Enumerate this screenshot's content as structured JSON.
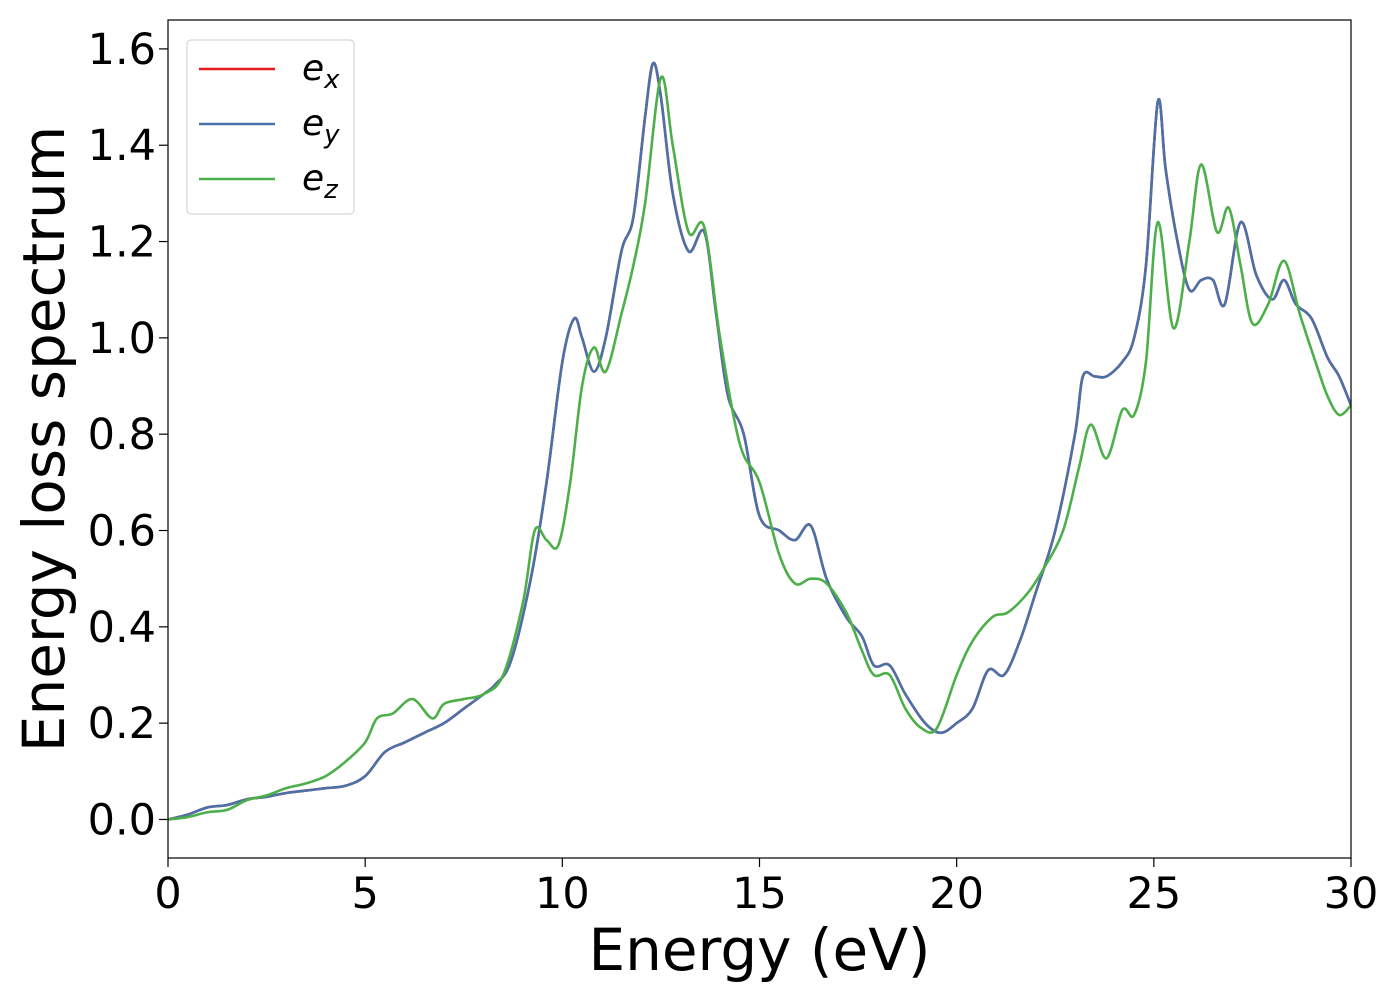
{
  "chart_data": {
    "type": "line",
    "title": "",
    "xlabel": "Energy (eV)",
    "ylabel": "Energy loss spectrum",
    "xlim": [
      0,
      30
    ],
    "ylim": [
      -0.08,
      1.66
    ],
    "xticks": [
      0,
      5,
      10,
      15,
      20,
      25,
      30
    ],
    "xtick_labels": [
      "0",
      "5",
      "10",
      "15",
      "20",
      "25",
      "30"
    ],
    "yticks": [
      0.0,
      0.2,
      0.4,
      0.6,
      0.8,
      1.0,
      1.2,
      1.4,
      1.6
    ],
    "ytick_labels": [
      "0.0",
      "0.2",
      "0.4",
      "0.6",
      "0.8",
      "1.0",
      "1.2",
      "1.4",
      "1.6"
    ],
    "grid": false,
    "legend": {
      "position": "top-left"
    },
    "series": [
      {
        "name": "e_x",
        "legend_base": "e",
        "legend_sub": "x",
        "color": "#e41a1c",
        "points": [
          [
            0,
            0
          ],
          [
            0.5,
            0.01
          ],
          [
            1,
            0.025
          ],
          [
            1.5,
            0.03
          ],
          [
            2,
            0.042
          ],
          [
            2.5,
            0.047
          ],
          [
            3,
            0.055
          ],
          [
            3.5,
            0.06
          ],
          [
            4,
            0.065
          ],
          [
            4.5,
            0.07
          ],
          [
            5,
            0.09
          ],
          [
            5.5,
            0.14
          ],
          [
            6,
            0.16
          ],
          [
            6.5,
            0.18
          ],
          [
            7,
            0.2
          ],
          [
            7.5,
            0.23
          ],
          [
            8,
            0.26
          ],
          [
            8.3,
            0.28
          ],
          [
            8.7,
            0.33
          ],
          [
            9.2,
            0.5
          ],
          [
            9.6,
            0.7
          ],
          [
            10,
            0.95
          ],
          [
            10.3,
            1.04
          ],
          [
            10.5,
            1.0
          ],
          [
            10.8,
            0.93
          ],
          [
            11.1,
            1.0
          ],
          [
            11.5,
            1.18
          ],
          [
            11.8,
            1.25
          ],
          [
            12.1,
            1.46
          ],
          [
            12.3,
            1.57
          ],
          [
            12.5,
            1.5
          ],
          [
            12.8,
            1.3
          ],
          [
            13.2,
            1.18
          ],
          [
            13.6,
            1.22
          ],
          [
            13.9,
            1.05
          ],
          [
            14.2,
            0.88
          ],
          [
            14.6,
            0.8
          ],
          [
            15,
            0.63
          ],
          [
            15.5,
            0.6
          ],
          [
            15.9,
            0.58
          ],
          [
            16.3,
            0.61
          ],
          [
            16.7,
            0.5
          ],
          [
            17.2,
            0.42
          ],
          [
            17.6,
            0.38
          ],
          [
            17.9,
            0.32
          ],
          [
            18.3,
            0.32
          ],
          [
            18.7,
            0.26
          ],
          [
            19.2,
            0.2
          ],
          [
            19.6,
            0.18
          ],
          [
            20,
            0.2
          ],
          [
            20.4,
            0.23
          ],
          [
            20.8,
            0.31
          ],
          [
            21.2,
            0.3
          ],
          [
            21.6,
            0.37
          ],
          [
            22,
            0.47
          ],
          [
            22.5,
            0.6
          ],
          [
            23,
            0.8
          ],
          [
            23.2,
            0.92
          ],
          [
            23.5,
            0.92
          ],
          [
            23.8,
            0.92
          ],
          [
            24.2,
            0.95
          ],
          [
            24.5,
            1.0
          ],
          [
            24.8,
            1.15
          ],
          [
            25.1,
            1.49
          ],
          [
            25.3,
            1.35
          ],
          [
            25.6,
            1.2
          ],
          [
            25.9,
            1.1
          ],
          [
            26.2,
            1.12
          ],
          [
            26.5,
            1.12
          ],
          [
            26.8,
            1.07
          ],
          [
            27.2,
            1.24
          ],
          [
            27.6,
            1.13
          ],
          [
            28,
            1.08
          ],
          [
            28.3,
            1.12
          ],
          [
            28.6,
            1.07
          ],
          [
            29,
            1.04
          ],
          [
            29.4,
            0.96
          ],
          [
            29.7,
            0.92
          ],
          [
            30,
            0.86
          ]
        ]
      },
      {
        "name": "e_y",
        "legend_base": "e",
        "legend_sub": "y",
        "color": "#4a72a8",
        "points": [
          [
            0,
            0
          ],
          [
            0.5,
            0.01
          ],
          [
            1,
            0.025
          ],
          [
            1.5,
            0.03
          ],
          [
            2,
            0.042
          ],
          [
            2.5,
            0.047
          ],
          [
            3,
            0.055
          ],
          [
            3.5,
            0.06
          ],
          [
            4,
            0.065
          ],
          [
            4.5,
            0.07
          ],
          [
            5,
            0.09
          ],
          [
            5.5,
            0.14
          ],
          [
            6,
            0.16
          ],
          [
            6.5,
            0.18
          ],
          [
            7,
            0.2
          ],
          [
            7.5,
            0.23
          ],
          [
            8,
            0.26
          ],
          [
            8.3,
            0.28
          ],
          [
            8.7,
            0.33
          ],
          [
            9.2,
            0.5
          ],
          [
            9.6,
            0.7
          ],
          [
            10,
            0.95
          ],
          [
            10.3,
            1.04
          ],
          [
            10.5,
            1.0
          ],
          [
            10.8,
            0.93
          ],
          [
            11.1,
            1.0
          ],
          [
            11.5,
            1.18
          ],
          [
            11.8,
            1.25
          ],
          [
            12.1,
            1.46
          ],
          [
            12.3,
            1.57
          ],
          [
            12.5,
            1.5
          ],
          [
            12.8,
            1.3
          ],
          [
            13.2,
            1.18
          ],
          [
            13.6,
            1.22
          ],
          [
            13.9,
            1.05
          ],
          [
            14.2,
            0.88
          ],
          [
            14.6,
            0.8
          ],
          [
            15,
            0.63
          ],
          [
            15.5,
            0.6
          ],
          [
            15.9,
            0.58
          ],
          [
            16.3,
            0.61
          ],
          [
            16.7,
            0.5
          ],
          [
            17.2,
            0.42
          ],
          [
            17.6,
            0.38
          ],
          [
            17.9,
            0.32
          ],
          [
            18.3,
            0.32
          ],
          [
            18.7,
            0.26
          ],
          [
            19.2,
            0.2
          ],
          [
            19.6,
            0.18
          ],
          [
            20,
            0.2
          ],
          [
            20.4,
            0.23
          ],
          [
            20.8,
            0.31
          ],
          [
            21.2,
            0.3
          ],
          [
            21.6,
            0.37
          ],
          [
            22,
            0.47
          ],
          [
            22.5,
            0.6
          ],
          [
            23,
            0.8
          ],
          [
            23.2,
            0.92
          ],
          [
            23.5,
            0.92
          ],
          [
            23.8,
            0.92
          ],
          [
            24.2,
            0.95
          ],
          [
            24.5,
            1.0
          ],
          [
            24.8,
            1.15
          ],
          [
            25.1,
            1.49
          ],
          [
            25.3,
            1.35
          ],
          [
            25.6,
            1.2
          ],
          [
            25.9,
            1.1
          ],
          [
            26.2,
            1.12
          ],
          [
            26.5,
            1.12
          ],
          [
            26.8,
            1.07
          ],
          [
            27.2,
            1.24
          ],
          [
            27.6,
            1.13
          ],
          [
            28,
            1.08
          ],
          [
            28.3,
            1.12
          ],
          [
            28.6,
            1.07
          ],
          [
            29,
            1.04
          ],
          [
            29.4,
            0.96
          ],
          [
            29.7,
            0.92
          ],
          [
            30,
            0.86
          ]
        ]
      },
      {
        "name": "e_z",
        "legend_base": "e",
        "legend_sub": "z",
        "color": "#4daf4a",
        "points": [
          [
            0,
            0
          ],
          [
            0.5,
            0.005
          ],
          [
            1,
            0.015
          ],
          [
            1.5,
            0.02
          ],
          [
            2,
            0.04
          ],
          [
            2.5,
            0.05
          ],
          [
            3,
            0.065
          ],
          [
            3.5,
            0.075
          ],
          [
            4,
            0.09
          ],
          [
            4.5,
            0.12
          ],
          [
            5,
            0.16
          ],
          [
            5.3,
            0.21
          ],
          [
            5.7,
            0.22
          ],
          [
            6.2,
            0.25
          ],
          [
            6.7,
            0.21
          ],
          [
            7,
            0.24
          ],
          [
            7.5,
            0.25
          ],
          [
            8,
            0.26
          ],
          [
            8.5,
            0.3
          ],
          [
            9,
            0.45
          ],
          [
            9.3,
            0.6
          ],
          [
            9.6,
            0.58
          ],
          [
            9.9,
            0.57
          ],
          [
            10.2,
            0.7
          ],
          [
            10.5,
            0.9
          ],
          [
            10.8,
            0.98
          ],
          [
            11.1,
            0.93
          ],
          [
            11.5,
            1.05
          ],
          [
            11.8,
            1.15
          ],
          [
            12.1,
            1.28
          ],
          [
            12.5,
            1.54
          ],
          [
            12.8,
            1.4
          ],
          [
            13.2,
            1.22
          ],
          [
            13.6,
            1.23
          ],
          [
            14,
            1.0
          ],
          [
            14.5,
            0.78
          ],
          [
            15,
            0.7
          ],
          [
            15.5,
            0.55
          ],
          [
            15.9,
            0.49
          ],
          [
            16.3,
            0.5
          ],
          [
            16.7,
            0.49
          ],
          [
            17.2,
            0.43
          ],
          [
            17.6,
            0.35
          ],
          [
            17.9,
            0.3
          ],
          [
            18.3,
            0.3
          ],
          [
            18.7,
            0.23
          ],
          [
            19.1,
            0.19
          ],
          [
            19.5,
            0.19
          ],
          [
            20,
            0.3
          ],
          [
            20.4,
            0.37
          ],
          [
            20.9,
            0.42
          ],
          [
            21.3,
            0.43
          ],
          [
            21.8,
            0.47
          ],
          [
            22.2,
            0.52
          ],
          [
            22.7,
            0.6
          ],
          [
            23.1,
            0.73
          ],
          [
            23.4,
            0.82
          ],
          [
            23.8,
            0.75
          ],
          [
            24.2,
            0.85
          ],
          [
            24.5,
            0.84
          ],
          [
            24.8,
            0.95
          ],
          [
            25.1,
            1.24
          ],
          [
            25.5,
            1.02
          ],
          [
            25.9,
            1.2
          ],
          [
            26.2,
            1.36
          ],
          [
            26.6,
            1.22
          ],
          [
            26.9,
            1.27
          ],
          [
            27.2,
            1.15
          ],
          [
            27.5,
            1.03
          ],
          [
            27.9,
            1.07
          ],
          [
            28.3,
            1.16
          ],
          [
            28.7,
            1.05
          ],
          [
            29.1,
            0.95
          ],
          [
            29.4,
            0.88
          ],
          [
            29.7,
            0.84
          ],
          [
            30,
            0.86
          ]
        ]
      }
    ]
  }
}
